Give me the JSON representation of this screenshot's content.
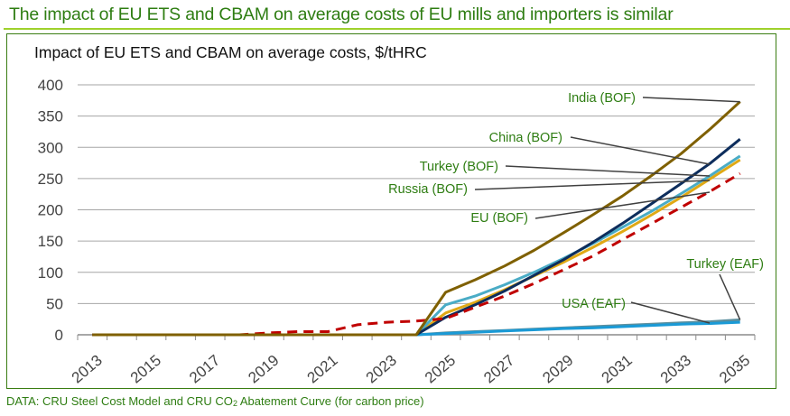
{
  "headline": "The impact of EU ETS and CBAM on average costs of EU mills and importers is similar",
  "footer": {
    "prefix": "DATA: CRU Steel Cost Model and CRU CO",
    "subscript": "2",
    "suffix": " Abatement Curve (for carbon price)"
  },
  "chart_data": {
    "type": "line",
    "title": "Impact of EU ETS and CBAM on average costs, $/tHRC",
    "xlabel": "",
    "ylabel": "",
    "ylim": [
      0,
      400
    ],
    "yticks": [
      0,
      50,
      100,
      150,
      200,
      250,
      300,
      350,
      400
    ],
    "grid": true,
    "x": [
      2013,
      2014,
      2015,
      2016,
      2017,
      2018,
      2019,
      2020,
      2021,
      2022,
      2023,
      2024,
      2025,
      2026,
      2027,
      2028,
      2029,
      2030,
      2031,
      2032,
      2033,
      2034,
      2035
    ],
    "xtick_labels": [
      "2013",
      "2015",
      "2017",
      "2019",
      "2021",
      "2023",
      "2025",
      "2027",
      "2029",
      "2031",
      "2033",
      "2035"
    ],
    "series": [
      {
        "name": "India (BOF)",
        "color": "#7f6000",
        "dash": false,
        "values": [
          0,
          0,
          0,
          0,
          0,
          0,
          0,
          0,
          0,
          0,
          0,
          0,
          68,
          88,
          110,
          135,
          163,
          192,
          222,
          255,
          290,
          330,
          373
        ]
      },
      {
        "name": "China (BOF)",
        "color": "#0d2d5c",
        "dash": false,
        "values": [
          0,
          0,
          0,
          0,
          0,
          0,
          0,
          0,
          0,
          0,
          0,
          0,
          28,
          48,
          70,
          95,
          120,
          148,
          178,
          210,
          242,
          275,
          313
        ]
      },
      {
        "name": "Turkey (BOF)",
        "color": "#4aacc6",
        "dash": false,
        "values": [
          0,
          0,
          0,
          0,
          0,
          0,
          0,
          0,
          0,
          0,
          0,
          0,
          48,
          62,
          80,
          100,
          122,
          146,
          172,
          198,
          226,
          255,
          286
        ]
      },
      {
        "name": "Russia (BOF)",
        "color": "#e0a915",
        "dash": false,
        "values": [
          0,
          0,
          0,
          0,
          0,
          0,
          0,
          0,
          0,
          0,
          0,
          0,
          35,
          52,
          72,
          94,
          116,
          140,
          165,
          192,
          220,
          250,
          280
        ]
      },
      {
        "name": "EU (BOF)",
        "color": "#c00000",
        "dash": true,
        "values": [
          0,
          0,
          0,
          0,
          0,
          0,
          3,
          5,
          5,
          16,
          20,
          22,
          26,
          44,
          62,
          82,
          104,
          126,
          152,
          178,
          204,
          230,
          258
        ]
      },
      {
        "name": "Turkey (EAF)",
        "color": "#5b8f9e",
        "dash": false,
        "values": [
          0,
          0,
          0,
          0,
          0,
          0,
          0,
          0,
          0,
          0,
          0,
          0,
          3,
          5,
          7,
          9,
          11,
          13,
          15,
          17,
          19,
          21,
          24
        ]
      },
      {
        "name": "USA (EAF)",
        "color": "#1a9ad6",
        "dash": false,
        "values": [
          0,
          0,
          0,
          0,
          0,
          0,
          0,
          0,
          0,
          0,
          0,
          0,
          2,
          4,
          6,
          8,
          10,
          11,
          13,
          15,
          17,
          18,
          20
        ]
      }
    ],
    "annotations": [
      {
        "text": "India (BOF)",
        "series": "India (BOF)"
      },
      {
        "text": "China (BOF)",
        "series": "China (BOF)"
      },
      {
        "text": "Turkey (BOF)",
        "series": "Turkey (BOF)"
      },
      {
        "text": "Russia (BOF)",
        "series": "Russia (BOF)"
      },
      {
        "text": "EU (BOF)",
        "series": "EU (BOF)"
      },
      {
        "text": "Turkey (EAF)",
        "series": "Turkey (EAF)"
      },
      {
        "text": "USA (EAF)",
        "series": "USA (EAF)"
      }
    ],
    "legend": "inline-annotations"
  }
}
